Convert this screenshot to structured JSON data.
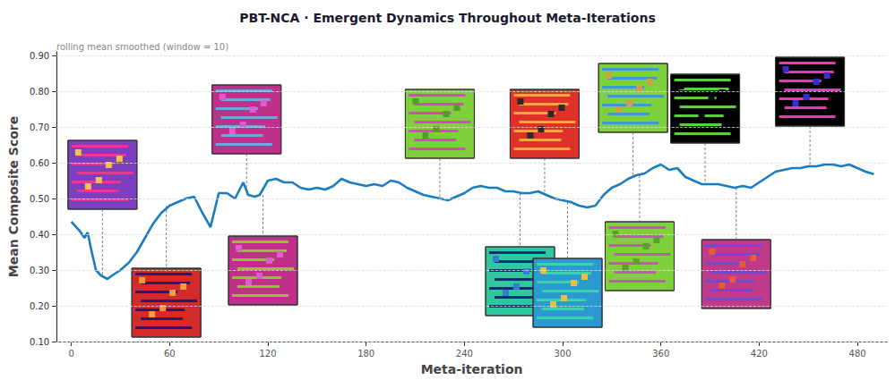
{
  "chart_data": {
    "type": "line",
    "title": "PBT-NCA · Emergent Dynamics Throughout Meta-Iterations",
    "subtitle": "rolling mean smoothed (window = 10)",
    "x_label": "Meta-iteration",
    "y_label": "Mean Composite Score",
    "x": [
      0,
      5,
      8,
      10,
      12,
      15,
      18,
      20,
      22,
      25,
      30,
      35,
      40,
      45,
      50,
      55,
      60,
      65,
      70,
      75,
      80,
      85,
      90,
      95,
      100,
      105,
      108,
      112,
      115,
      120,
      125,
      130,
      135,
      140,
      145,
      150,
      155,
      160,
      165,
      170,
      175,
      180,
      185,
      190,
      195,
      200,
      205,
      210,
      215,
      220,
      225,
      230,
      235,
      240,
      245,
      250,
      255,
      260,
      265,
      270,
      275,
      280,
      285,
      290,
      295,
      300,
      305,
      310,
      315,
      320,
      325,
      330,
      335,
      340,
      345,
      350,
      355,
      360,
      365,
      370,
      375,
      380,
      385,
      390,
      395,
      400,
      405,
      410,
      415,
      420,
      425,
      430,
      435,
      440,
      445,
      450,
      455,
      460,
      465,
      470,
      475,
      480,
      485,
      490
    ],
    "series": [
      {
        "name": "Mean Composite Score",
        "color": "#1a7dbf",
        "values": [
          0.435,
          0.41,
          0.39,
          0.405,
          0.36,
          0.3,
          0.285,
          0.28,
          0.275,
          0.285,
          0.3,
          0.32,
          0.35,
          0.39,
          0.43,
          0.46,
          0.48,
          0.49,
          0.5,
          0.505,
          0.46,
          0.42,
          0.515,
          0.515,
          0.5,
          0.545,
          0.51,
          0.505,
          0.51,
          0.55,
          0.555,
          0.545,
          0.545,
          0.53,
          0.525,
          0.53,
          0.525,
          0.535,
          0.555,
          0.545,
          0.54,
          0.535,
          0.54,
          0.535,
          0.55,
          0.545,
          0.53,
          0.52,
          0.51,
          0.505,
          0.5,
          0.495,
          0.505,
          0.515,
          0.53,
          0.535,
          0.53,
          0.53,
          0.52,
          0.52,
          0.515,
          0.515,
          0.52,
          0.51,
          0.5,
          0.495,
          0.49,
          0.48,
          0.475,
          0.48,
          0.51,
          0.53,
          0.54,
          0.555,
          0.565,
          0.57,
          0.585,
          0.595,
          0.58,
          0.585,
          0.56,
          0.55,
          0.54,
          0.54,
          0.54,
          0.535,
          0.53,
          0.535,
          0.53,
          0.545,
          0.56,
          0.575,
          0.58,
          0.585,
          0.585,
          0.59,
          0.59,
          0.595,
          0.595,
          0.59,
          0.595,
          0.585,
          0.575,
          0.568
        ]
      }
    ],
    "snapshots": [
      19,
      58,
      107,
      117,
      225,
      274,
      289,
      303,
      343,
      347,
      387,
      406,
      451
    ],
    "xlim": [
      -9,
      498
    ],
    "xticks": [
      0,
      60,
      120,
      180,
      240,
      300,
      360,
      420,
      480
    ],
    "ylim": [
      0.1,
      0.91
    ],
    "yticks": [
      {
        "value": 0.1,
        "label": "0.10"
      },
      {
        "value": 0.2,
        "label": "0.20"
      },
      {
        "value": 0.3,
        "label": "0.30"
      },
      {
        "value": 0.4,
        "label": "0.40"
      },
      {
        "value": 0.5,
        "label": "0.50"
      },
      {
        "value": 0.6,
        "label": "0.60"
      },
      {
        "value": 0.7,
        "label": "0.70"
      },
      {
        "value": 0.8,
        "label": "0.80"
      },
      {
        "value": 0.9,
        "label": "0.90"
      }
    ],
    "grid": true,
    "marker": "none",
    "line_style": "solid"
  }
}
